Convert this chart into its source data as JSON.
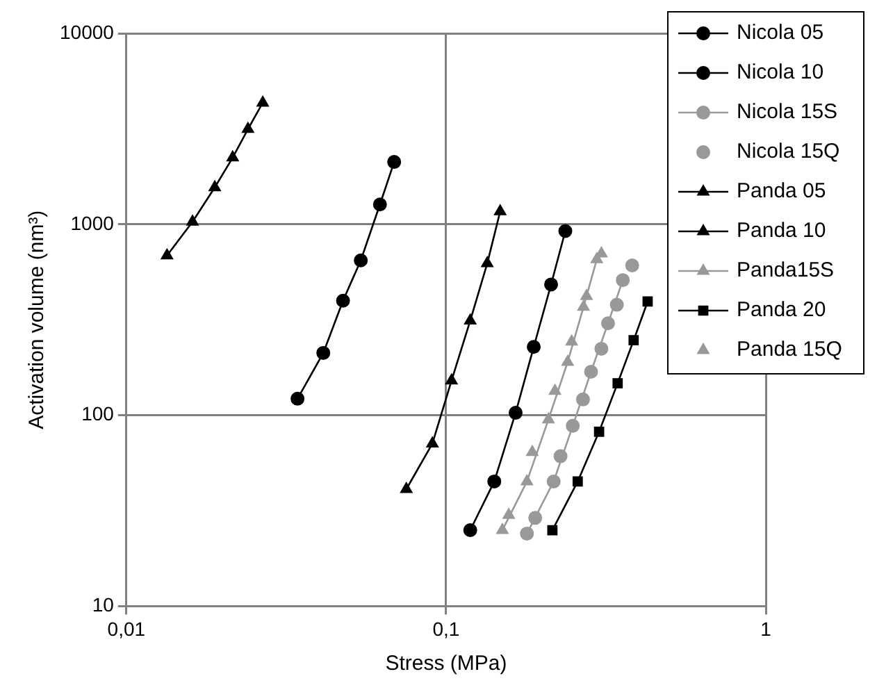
{
  "chart_data": {
    "type": "line",
    "xlabel": "Stress (MPa)",
    "ylabel": "Activation volume (nm³)",
    "log": "xy",
    "grid": true,
    "legend": "top right",
    "xlim": [
      0.01,
      1
    ],
    "xticks": [
      {
        "value": 0.01,
        "label": "0,01"
      },
      {
        "value": 0.1,
        "label": "0,1"
      },
      {
        "value": 1,
        "label": "1"
      }
    ],
    "ylim": [
      10,
      10000
    ],
    "yticks": [
      10,
      100,
      1000,
      10000
    ],
    "series": [
      {
        "name": "Nicola 05",
        "color": "#000000",
        "marker": "circle",
        "x": [
          0.0343,
          0.0413,
          0.0476,
          0.0541,
          0.0621,
          0.0688
        ],
        "values": [
          122,
          212,
          398,
          647,
          1270,
          2120
        ]
      },
      {
        "name": "Nicola 10",
        "color": "#000000",
        "marker": "circle",
        "x": [
          0.119,
          0.1415,
          0.165,
          0.188,
          0.213,
          0.236
        ],
        "values": [
          25,
          45,
          103,
          228,
          484,
          922
        ]
      },
      {
        "name": "Nicola 15S",
        "color": "#999999",
        "marker": "circle",
        "x": [
          0.179,
          0.217,
          0.249,
          0.284,
          0.321,
          0.357
        ],
        "values": [
          24,
          45,
          88,
          169,
          303,
          510
        ]
      },
      {
        "name": "Nicola 15Q",
        "type": "scatter",
        "color": "#999999",
        "marker": "circle",
        "x": [
          0.19,
          0.228,
          0.268,
          0.306,
          0.342,
          0.382
        ],
        "values": [
          29,
          61,
          121,
          223,
          379,
          609
        ]
      },
      {
        "name": "Panda 05",
        "color": "#000000",
        "marker": "triangle",
        "x": [
          0.0134,
          0.0161,
          0.0189,
          0.0215,
          0.024,
          0.0267
        ],
        "values": [
          686,
          1030,
          1560,
          2235,
          3150,
          4330
        ]
      },
      {
        "name": "Panda 10",
        "color": "#000000",
        "marker": "triangle",
        "x": [
          0.0751,
          0.0906,
          0.104,
          0.119,
          0.1345,
          0.1476
        ],
        "values": [
          41,
          71,
          152,
          313,
          624,
          1167
        ]
      },
      {
        "name": "Panda15S",
        "color": "#999999",
        "marker": "triangle",
        "x": [
          0.15,
          0.179,
          0.209,
          0.24,
          0.269,
          0.296
        ],
        "values": [
          25,
          45,
          95,
          190,
          369,
          655
        ]
      },
      {
        "name": "Panda 20",
        "color": "#000000",
        "marker": "square",
        "x": [
          0.215,
          0.258,
          0.301,
          0.344,
          0.386,
          0.427
        ],
        "values": [
          25,
          45,
          82,
          147,
          247,
          394
        ]
      },
      {
        "name": "Panda 15Q",
        "type": "scatter",
        "color": "#999999",
        "marker": "triangle",
        "x": [
          0.157,
          0.186,
          0.219,
          0.247,
          0.275,
          0.306
        ],
        "values": [
          30,
          64,
          134,
          243,
          420,
          702
        ]
      }
    ]
  }
}
